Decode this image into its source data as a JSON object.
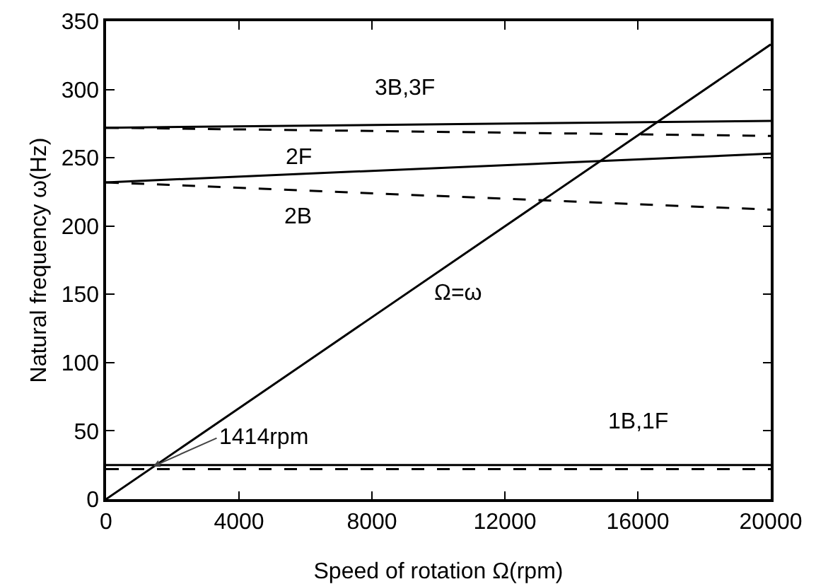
{
  "chart_data": {
    "type": "line",
    "xlabel": "Speed of rotation Ω(rpm)",
    "ylabel": "Natural frequency ω(Hz)",
    "xlim": [
      0,
      20000
    ],
    "xticks": [
      0,
      4000,
      8000,
      12000,
      16000,
      20000
    ],
    "ylim": [
      0,
      350
    ],
    "yticks": [
      0,
      50,
      100,
      150,
      200,
      250,
      300,
      350
    ],
    "grid": false,
    "marker": "none",
    "x": [
      0,
      20000
    ],
    "series": [
      {
        "color": "#000000",
        "line_style": "dashed",
        "values": [
          22,
          22
        ]
      },
      {
        "color": "#000000",
        "line_style": "solid",
        "values": [
          25,
          25
        ]
      },
      {
        "color": "#000000",
        "line_style": "solid",
        "values": [
          232,
          253
        ]
      },
      {
        "color": "#000000",
        "line_style": "dashed",
        "values": [
          232,
          212
        ]
      },
      {
        "color": "#000000",
        "line_style": "solid",
        "values": [
          272,
          277
        ]
      },
      {
        "color": "#000000",
        "line_style": "dashed",
        "values": [
          272,
          266
        ]
      },
      {
        "color": "#000000",
        "line_style": "solid",
        "values": [
          0,
          333
        ]
      }
    ],
    "annotations": [
      "3B,3F",
      "2F",
      "2B",
      "Ω=ω",
      "1B,1F",
      {
        "text": "1414rpm",
        "x": 1414,
        "y": 24
      }
    ]
  }
}
